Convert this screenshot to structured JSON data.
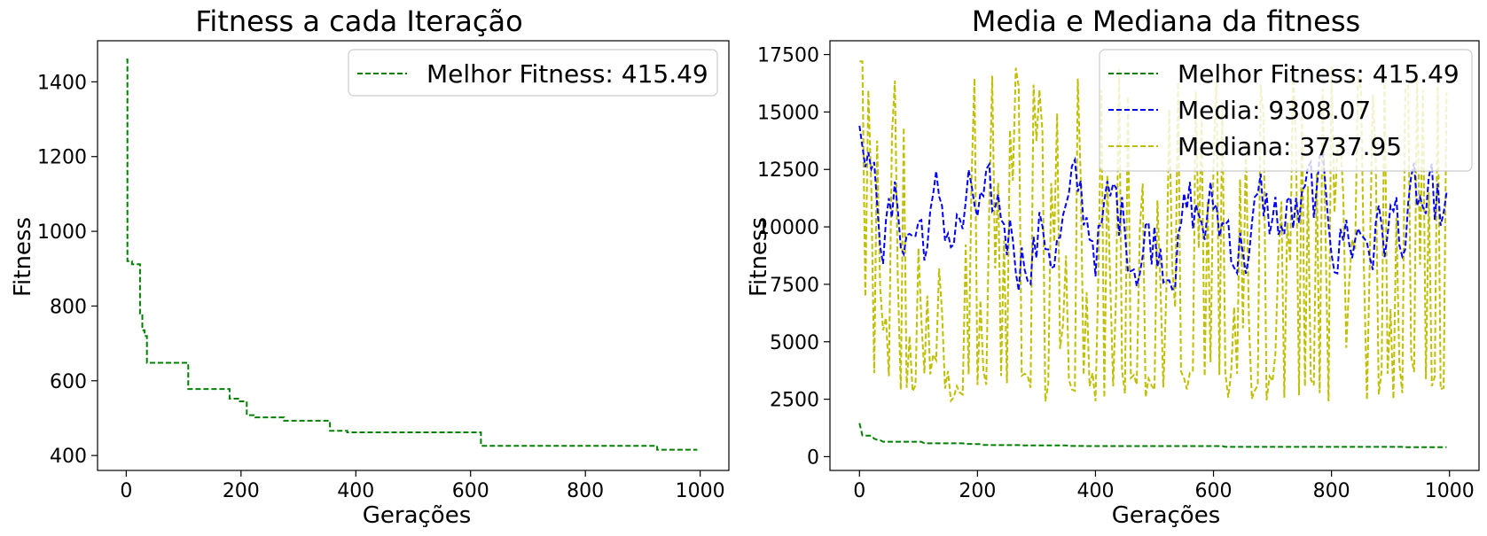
{
  "colors": {
    "green": "#008000",
    "blue": "#0000ff",
    "yellow": "#bfbf00",
    "frame": "#000000"
  },
  "chart_data": [
    {
      "type": "line",
      "title": "Fitness a cada Iteração",
      "xlabel": "Gerações",
      "ylabel": "Fitness",
      "xlim": [
        -50,
        1050
      ],
      "ylim": [
        360,
        1510
      ],
      "xticks": [
        0,
        200,
        400,
        600,
        800,
        1000
      ],
      "yticks": [
        400,
        600,
        800,
        1000,
        1200,
        1400
      ],
      "legend_position": "upper right",
      "grid": false,
      "series": [
        {
          "name": "Melhor Fitness: 415.49",
          "color": "green",
          "dash": true,
          "step": true,
          "points": [
            [
              0,
              1460
            ],
            [
              2,
              1460
            ],
            [
              2,
              920
            ],
            [
              10,
              920
            ],
            [
              10,
              912
            ],
            [
              24,
              912
            ],
            [
              24,
              780
            ],
            [
              28,
              780
            ],
            [
              28,
              735
            ],
            [
              32,
              735
            ],
            [
              32,
              720
            ],
            [
              36,
              720
            ],
            [
              36,
              648
            ],
            [
              108,
              648
            ],
            [
              108,
              578
            ],
            [
              180,
              578
            ],
            [
              180,
              552
            ],
            [
              195,
              552
            ],
            [
              195,
              545
            ],
            [
              210,
              545
            ],
            [
              210,
              508
            ],
            [
              225,
              508
            ],
            [
              225,
              502
            ],
            [
              275,
              502
            ],
            [
              275,
              493
            ],
            [
              355,
              493
            ],
            [
              355,
              466
            ],
            [
              385,
              466
            ],
            [
              385,
              462
            ],
            [
              618,
              462
            ],
            [
              618,
              426
            ],
            [
              925,
              426
            ],
            [
              925,
              415.49
            ],
            [
              995,
              415.49
            ]
          ]
        }
      ]
    },
    {
      "type": "line",
      "title": "Media e Mediana da fitness",
      "xlabel": "Gerações",
      "ylabel": "Fitness",
      "xlim": [
        -50,
        1050
      ],
      "ylim": [
        -600,
        18100
      ],
      "xticks": [
        0,
        200,
        400,
        600,
        800,
        1000
      ],
      "yticks": [
        0,
        2500,
        5000,
        7500,
        10000,
        12500,
        15000,
        17500
      ],
      "legend_position": "upper right",
      "grid": false,
      "series": [
        {
          "name": "Melhor Fitness: 415.49",
          "color": "green",
          "dash": true,
          "kind": "best"
        },
        {
          "name": "Media: 9308.07",
          "color": "blue",
          "dash": true,
          "kind": "mean"
        },
        {
          "name": "Mediana: 3737.95",
          "color": "yellow",
          "dash": true,
          "kind": "median"
        }
      ]
    }
  ]
}
